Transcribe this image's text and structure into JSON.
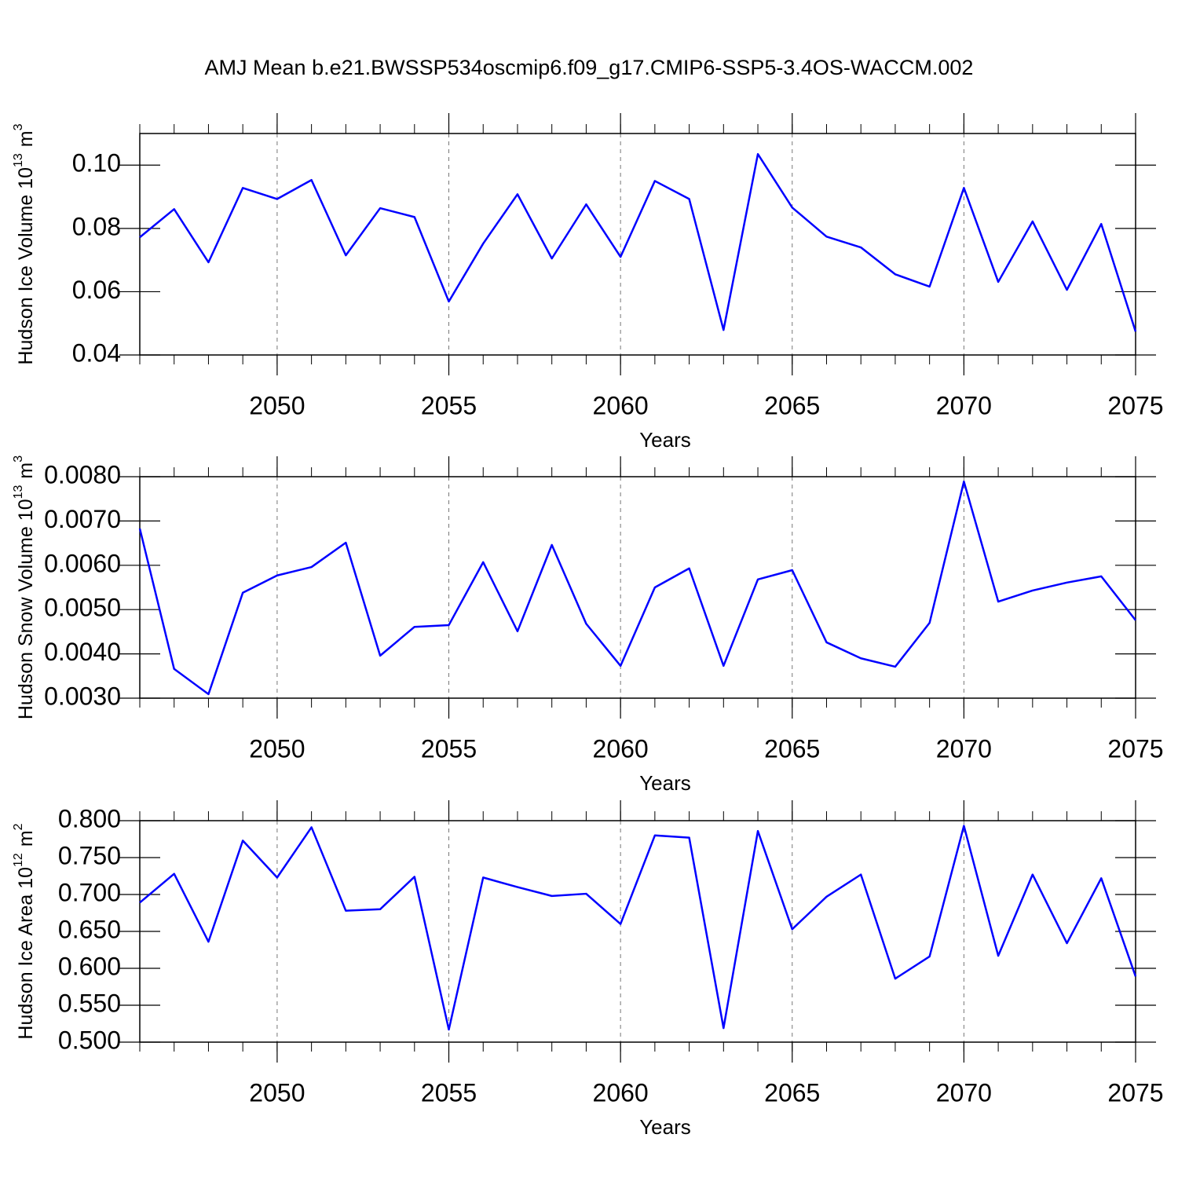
{
  "chart_data": [
    {
      "type": "line",
      "title": "AMJ Mean b.e21.BWSSP534oscmip6.f09_g17.CMIP6-SSP5-3.4OS-WACCM.002",
      "ylabel": [
        "Hudson Ice Volume 10",
        "13",
        "m",
        "3"
      ],
      "xlabel": "Years",
      "x": [
        2046,
        2047,
        2048,
        2049,
        2050,
        2051,
        2052,
        2053,
        2054,
        2055,
        2056,
        2057,
        2058,
        2059,
        2060,
        2061,
        2062,
        2063,
        2064,
        2065,
        2066,
        2067,
        2068,
        2069,
        2070,
        2071,
        2072,
        2073,
        2074,
        2075
      ],
      "values": [
        0.0772,
        0.0861,
        0.0693,
        0.0928,
        0.0893,
        0.0953,
        0.0715,
        0.0864,
        0.0836,
        0.0569,
        0.0752,
        0.0908,
        0.0705,
        0.0876,
        0.071,
        0.095,
        0.0893,
        0.0479,
        0.1035,
        0.0866,
        0.0774,
        0.074,
        0.0655,
        0.0616,
        0.0928,
        0.0631,
        0.0822,
        0.0606,
        0.0814,
        0.0474
      ],
      "color": "#0000ff",
      "xlim": [
        2046,
        2075
      ],
      "xticks": [
        2050,
        2055,
        2060,
        2065,
        2070,
        2075
      ],
      "ylim": [
        0.04,
        0.11
      ],
      "yticks": [
        0.04,
        0.06,
        0.08,
        {
          "value": 0.1,
          "label": "0.10"
        }
      ],
      "grid": true
    },
    {
      "type": "line",
      "ylabel": [
        "Hudson Snow Volume 10",
        "13",
        "m",
        "3"
      ],
      "xlabel": "Years",
      "x": [
        2046,
        2047,
        2048,
        2049,
        2050,
        2051,
        2052,
        2053,
        2054,
        2055,
        2056,
        2057,
        2058,
        2059,
        2060,
        2061,
        2062,
        2063,
        2064,
        2065,
        2066,
        2067,
        2068,
        2069,
        2070,
        2071,
        2072,
        2073,
        2074,
        2075
      ],
      "values": [
        0.00683,
        0.00366,
        0.00309,
        0.00538,
        0.00577,
        0.00596,
        0.00651,
        0.00396,
        0.00461,
        0.00465,
        0.00607,
        0.00451,
        0.00646,
        0.00468,
        0.00373,
        0.0055,
        0.00593,
        0.00373,
        0.00568,
        0.00589,
        0.00426,
        0.0039,
        0.00371,
        0.0047,
        0.00789,
        0.00518,
        0.00543,
        0.00561,
        0.00575,
        0.00476
      ],
      "color": "#0000ff",
      "xlim": [
        2046,
        2075
      ],
      "xticks": [
        2050,
        2055,
        2060,
        2065,
        2070,
        2075
      ],
      "ylim": [
        0.003,
        0.008
      ],
      "yticks": [
        {
          "value": 0.003,
          "label": "0.0030"
        },
        {
          "value": 0.004,
          "label": "0.0040"
        },
        {
          "value": 0.005,
          "label": "0.0050"
        },
        {
          "value": 0.006,
          "label": "0.0060"
        },
        {
          "value": 0.007,
          "label": "0.0070"
        },
        {
          "value": 0.008,
          "label": "0.0080"
        }
      ],
      "grid": true
    },
    {
      "type": "line",
      "ylabel": [
        "Hudson Ice Area 10",
        "12",
        "m",
        "2"
      ],
      "xlabel": "Years",
      "x": [
        2046,
        2047,
        2048,
        2049,
        2050,
        2051,
        2052,
        2053,
        2054,
        2055,
        2056,
        2057,
        2058,
        2059,
        2060,
        2061,
        2062,
        2063,
        2064,
        2065,
        2066,
        2067,
        2068,
        2069,
        2070,
        2071,
        2072,
        2073,
        2074,
        2075
      ],
      "values": [
        0.689,
        0.728,
        0.636,
        0.773,
        0.723,
        0.791,
        0.678,
        0.68,
        0.724,
        0.517,
        0.723,
        0.71,
        0.698,
        0.701,
        0.66,
        0.78,
        0.777,
        0.519,
        0.786,
        0.653,
        0.697,
        0.727,
        0.586,
        0.616,
        0.793,
        0.617,
        0.727,
        0.634,
        0.722,
        0.589
      ],
      "color": "#0000ff",
      "xlim": [
        2046,
        2075
      ],
      "xticks": [
        2050,
        2055,
        2060,
        2065,
        2070,
        2075
      ],
      "ylim": [
        0.5,
        0.8
      ],
      "yticks": [
        {
          "value": 0.5,
          "label": "0.500"
        },
        {
          "value": 0.55,
          "label": "0.550"
        },
        {
          "value": 0.6,
          "label": "0.600"
        },
        {
          "value": 0.65,
          "label": "0.650"
        },
        {
          "value": 0.7,
          "label": "0.700"
        },
        {
          "value": 0.75,
          "label": "0.750"
        },
        {
          "value": 0.8,
          "label": "0.800"
        }
      ],
      "grid": true
    }
  ]
}
